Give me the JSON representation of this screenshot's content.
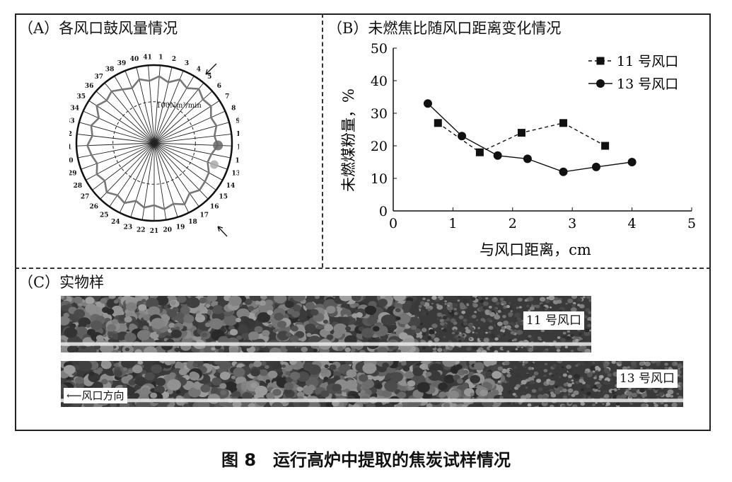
{
  "panel_a": {
    "title": "（A）各风口鼓风量情况",
    "scale_label": "100Nm³/min",
    "tuyere_labels": [
      "1",
      "2",
      "3",
      "4",
      "5",
      "6",
      "7",
      "8",
      "9",
      "10",
      "11",
      "12",
      "13",
      "14",
      "15",
      "16",
      "17",
      "18",
      "19",
      "20",
      "21",
      "22",
      "23",
      "24",
      "25",
      "26",
      "27",
      "28",
      "29",
      "30",
      "31",
      "32",
      "33",
      "34",
      "35",
      "36",
      "37",
      "38",
      "39",
      "40",
      "41"
    ]
  },
  "panel_b": {
    "title": "（B）未燃焦比随风口距离变化情况"
  },
  "panel_c": {
    "title": "（C）实物样",
    "sample1_label": "11 号风口",
    "sample2_label": "13 号风口",
    "direction_label": "风口方向"
  },
  "caption": "图 8　运行高炉中提取的焦炭试样情况",
  "chart_data": {
    "type": "line",
    "xlabel": "与风口距离，cm",
    "ylabel": "未燃煤粉量，%",
    "xlim": [
      0,
      5
    ],
    "ylim": [
      0,
      50
    ],
    "xticks": [
      0,
      1,
      2,
      3,
      4,
      5
    ],
    "yticks": [
      0,
      10,
      20,
      30,
      40,
      50
    ],
    "legend_position": "top-right",
    "series": [
      {
        "name": "11 号风口",
        "marker": "square",
        "line": "dashed",
        "x": [
          0.75,
          1.45,
          2.15,
          2.85,
          3.55
        ],
        "y": [
          27,
          18,
          24,
          27,
          20
        ]
      },
      {
        "name": "13 号风口",
        "marker": "circle",
        "line": "solid",
        "x": [
          0.58,
          1.15,
          1.75,
          2.25,
          2.85,
          3.4,
          4.0
        ],
        "y": [
          33,
          23,
          17,
          16,
          12,
          13.5,
          15
        ]
      }
    ]
  }
}
